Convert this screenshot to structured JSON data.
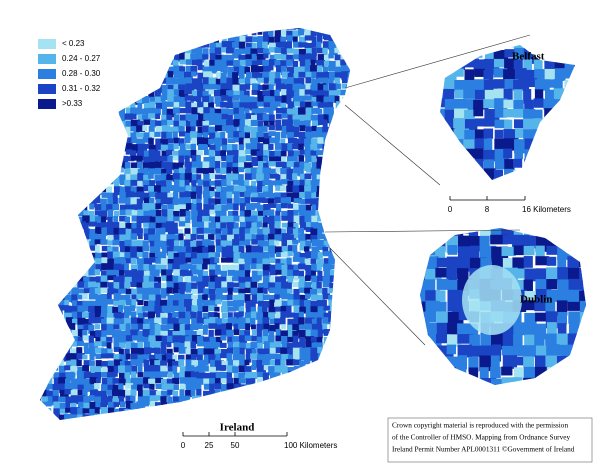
{
  "legend": {
    "items": [
      {
        "label": "< 0.23",
        "color": "#a6e3f2"
      },
      {
        "label": "0.24 - 0.27",
        "color": "#55b4ea"
      },
      {
        "label": "0.28 - 0.30",
        "color": "#2a7fe0"
      },
      {
        "label": "0.31 - 0.32",
        "color": "#1b44c4"
      },
      {
        "label": ">0.33",
        "color": "#0a1a8c"
      }
    ]
  },
  "labels": {
    "belfast": "Belfast",
    "dublin": "Dublin",
    "ireland": "Ireland"
  },
  "scale_belfast": [
    "0",
    "8",
    "16 Kilometers"
  ],
  "scale_ireland": [
    "0",
    "25",
    "50",
    "100 Kilometers"
  ],
  "copyright": [
    "Crown copyright material is reproduced with the permission",
    "of the Controller of HMSO. Mapping from Ordnance Survey",
    "Ireland Permit Number APL0001311 ©Government of Ireland"
  ]
}
